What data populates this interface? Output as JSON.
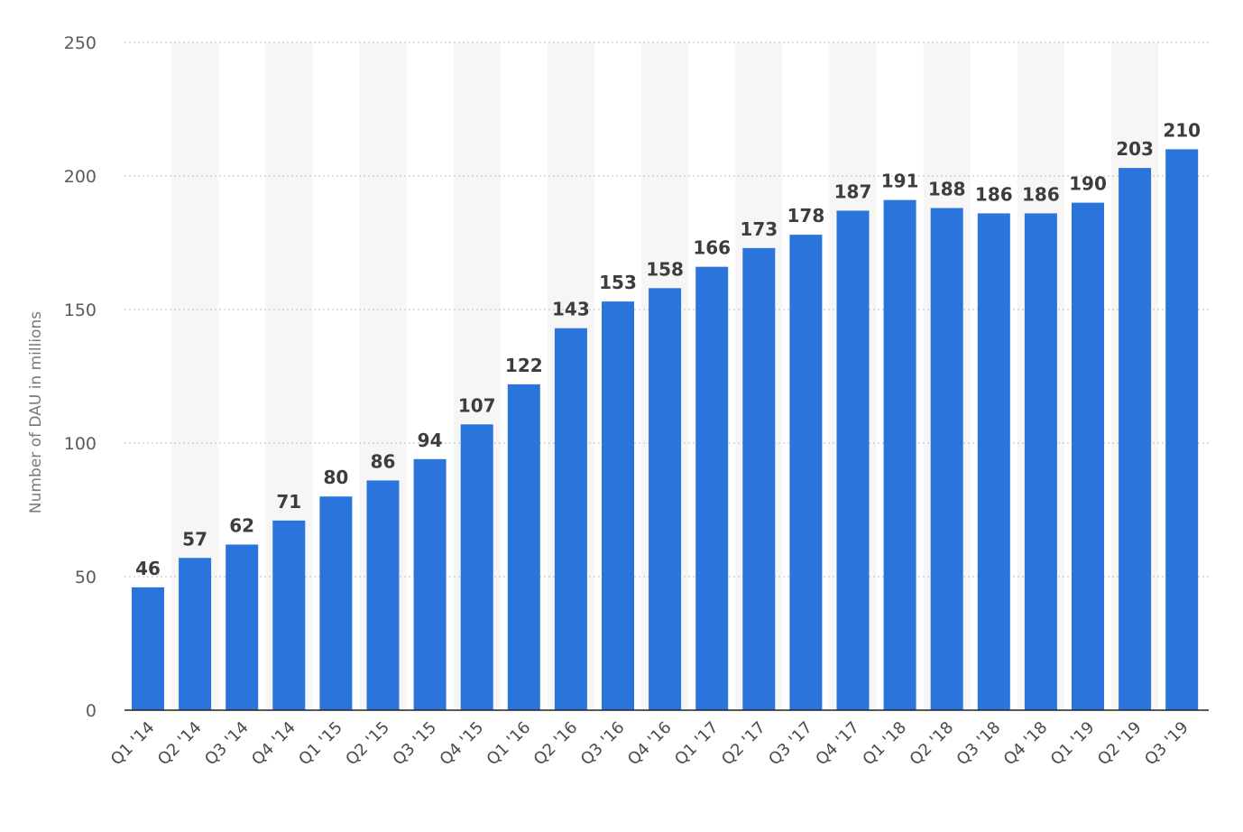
{
  "chart_data": {
    "type": "bar",
    "title": "",
    "xlabel": "",
    "ylabel": "Number of DAU in millions",
    "ylim": [
      0,
      250
    ],
    "yticks": [
      0,
      50,
      100,
      150,
      200,
      250
    ],
    "grid": true,
    "legend": "none",
    "bar_color": "#2a74db",
    "band_color": "#f6f6f6",
    "categories": [
      "Q1 '14",
      "Q2 '14",
      "Q3 '14",
      "Q4 '14",
      "Q1 '15",
      "Q2 '15",
      "Q3 '15",
      "Q4 '15",
      "Q1 '16",
      "Q2 '16",
      "Q3 '16",
      "Q4 '16",
      "Q1 '17",
      "Q2 '17",
      "Q3 '17",
      "Q4 '17",
      "Q1 '18",
      "Q2 '18",
      "Q3 '18",
      "Q4 '18",
      "Q1 '19",
      "Q2 '19",
      "Q3 '19"
    ],
    "values": [
      46,
      57,
      62,
      71,
      80,
      86,
      94,
      107,
      122,
      143,
      153,
      158,
      166,
      173,
      178,
      187,
      191,
      188,
      186,
      186,
      190,
      203,
      210
    ]
  }
}
